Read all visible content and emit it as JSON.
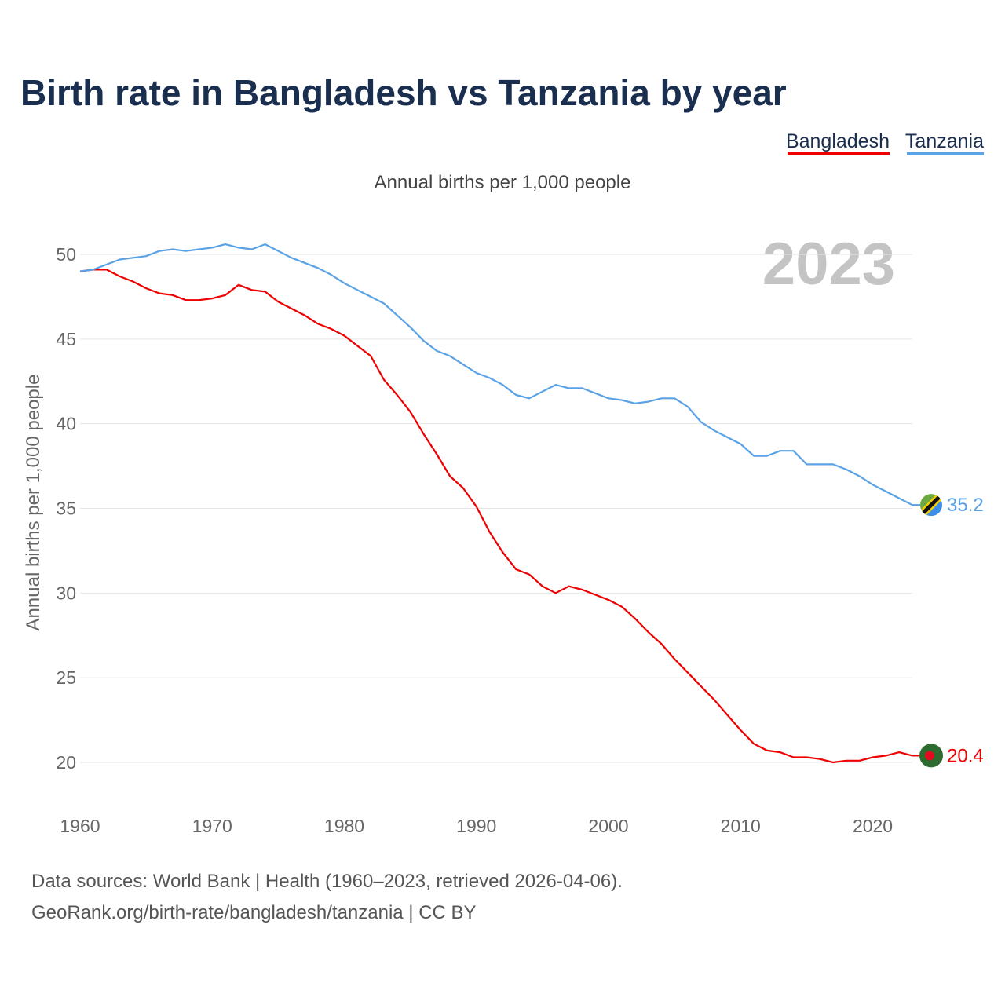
{
  "chart_data": {
    "type": "line",
    "title": "Birth rate in Bangladesh vs Tanzania by year",
    "subtitle": "Annual births per 1,000 people",
    "ylabel": "Annual births per 1,000 people",
    "xlabel": "",
    "current_year": "2023",
    "xlim": [
      1960,
      2023
    ],
    "ylim": [
      17.5,
      52
    ],
    "x_ticks": [
      1960,
      1970,
      1980,
      1990,
      2000,
      2010,
      2020
    ],
    "y_ticks": [
      20,
      25,
      30,
      35,
      40,
      45,
      50
    ],
    "grid": true,
    "legend_position": "top-right",
    "x": [
      1960,
      1961,
      1962,
      1963,
      1964,
      1965,
      1966,
      1967,
      1968,
      1969,
      1970,
      1971,
      1972,
      1973,
      1974,
      1975,
      1976,
      1977,
      1978,
      1979,
      1980,
      1981,
      1982,
      1983,
      1984,
      1985,
      1986,
      1987,
      1988,
      1989,
      1990,
      1991,
      1992,
      1993,
      1994,
      1995,
      1996,
      1997,
      1998,
      1999,
      2000,
      2001,
      2002,
      2003,
      2004,
      2005,
      2006,
      2007,
      2008,
      2009,
      2010,
      2011,
      2012,
      2013,
      2014,
      2015,
      2016,
      2017,
      2018,
      2019,
      2020,
      2021,
      2022,
      2023
    ],
    "series": [
      {
        "name": "Bangladesh",
        "color": "#ee0000",
        "end_label": "20.4",
        "flag_icon": "bangladesh-flag-icon",
        "values": [
          49.0,
          49.1,
          49.1,
          48.7,
          48.4,
          48.0,
          47.7,
          47.6,
          47.3,
          47.3,
          47.4,
          47.6,
          48.2,
          47.9,
          47.8,
          47.2,
          46.8,
          46.4,
          45.9,
          45.6,
          45.2,
          44.6,
          44.0,
          42.6,
          41.7,
          40.7,
          39.4,
          38.2,
          36.9,
          36.2,
          35.1,
          33.6,
          32.4,
          31.4,
          31.1,
          30.4,
          30.0,
          30.4,
          30.2,
          29.9,
          29.6,
          29.2,
          28.5,
          27.7,
          27.0,
          26.1,
          25.3,
          24.5,
          23.7,
          22.8,
          21.9,
          21.1,
          20.7,
          20.6,
          20.3,
          20.3,
          20.2,
          20.0,
          20.1,
          20.1,
          20.3,
          20.4,
          20.6,
          20.4
        ]
      },
      {
        "name": "Tanzania",
        "color": "#5aa2e6",
        "end_label": "35.2",
        "flag_icon": "tanzania-flag-icon",
        "values": [
          49.0,
          49.1,
          49.4,
          49.7,
          49.8,
          49.9,
          50.2,
          50.3,
          50.2,
          50.3,
          50.4,
          50.6,
          50.4,
          50.3,
          50.6,
          50.2,
          49.8,
          49.5,
          49.2,
          48.8,
          48.3,
          47.9,
          47.5,
          47.1,
          46.4,
          45.7,
          44.9,
          44.3,
          44.0,
          43.5,
          43.0,
          42.7,
          42.3,
          41.7,
          41.5,
          41.9,
          42.3,
          42.1,
          42.1,
          41.8,
          41.5,
          41.4,
          41.2,
          41.3,
          41.5,
          41.5,
          41.0,
          40.1,
          39.6,
          39.2,
          38.8,
          38.1,
          38.1,
          38.4,
          38.4,
          37.6,
          37.6,
          37.6,
          37.3,
          36.9,
          36.4,
          36.0,
          35.6,
          35.2
        ]
      }
    ]
  },
  "footer": {
    "source_line": "Data sources: World Bank | Health (1960–2023, retrieved 2026-04-06).",
    "url_line": "GeoRank.org/birth-rate/bangladesh/tanzania | CC BY"
  }
}
